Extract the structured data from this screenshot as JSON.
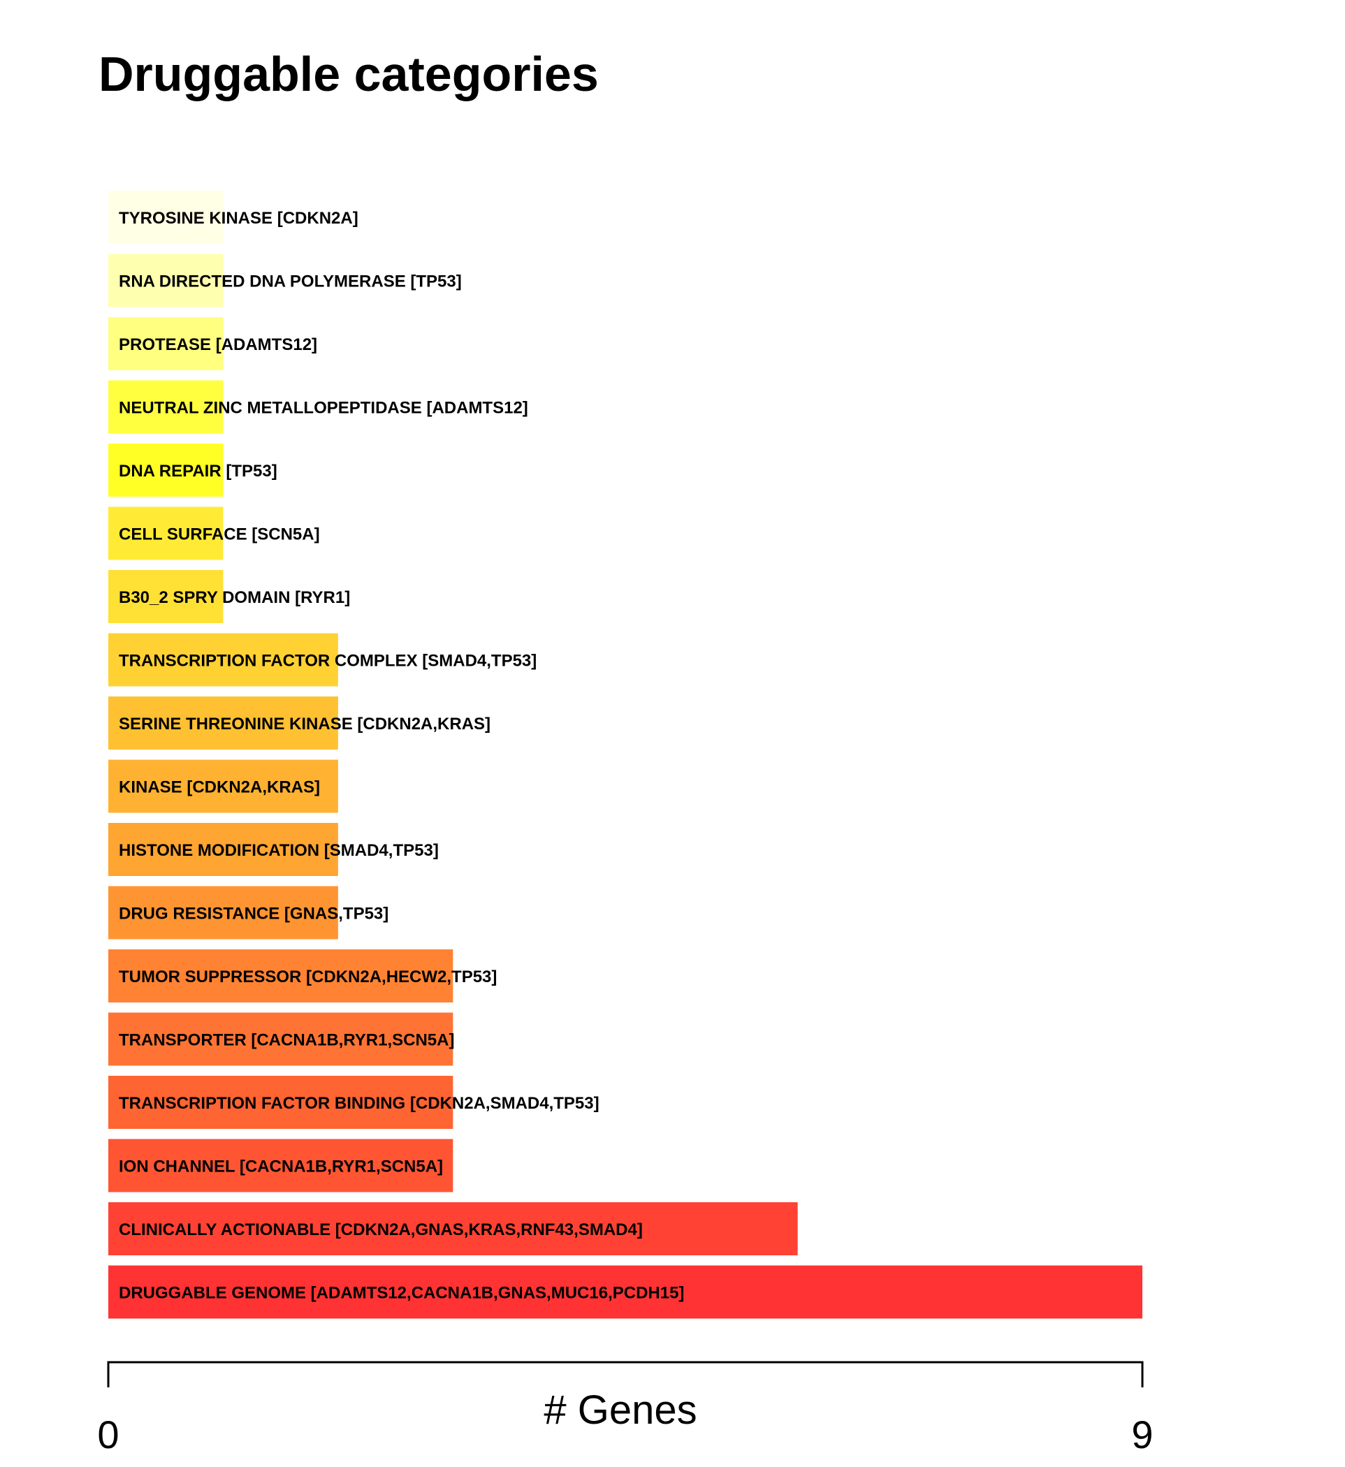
{
  "chart_data": {
    "type": "bar",
    "orientation": "horizontal",
    "title": "Druggable categories",
    "xlabel": "# Genes",
    "ylabel": "",
    "xlim": [
      0,
      9
    ],
    "x_ticks": [
      "0",
      "9"
    ],
    "grid": false,
    "legend": "none",
    "categories": [
      "TYROSINE KINASE [CDKN2A]",
      "RNA DIRECTED DNA POLYMERASE [TP53]",
      "PROTEASE [ADAMTS12]",
      "NEUTRAL ZINC METALLOPEPTIDASE [ADAMTS12]",
      "DNA REPAIR [TP53]",
      "CELL SURFACE [SCN5A]",
      "B30_2 SPRY DOMAIN [RYR1]",
      "TRANSCRIPTION FACTOR COMPLEX [SMAD4,TP53]",
      "SERINE THREONINE KINASE [CDKN2A,KRAS]",
      "KINASE [CDKN2A,KRAS]",
      "HISTONE MODIFICATION [SMAD4,TP53]",
      "DRUG RESISTANCE [GNAS,TP53]",
      "TUMOR SUPPRESSOR [CDKN2A,HECW2,TP53]",
      "TRANSPORTER [CACNA1B,RYR1,SCN5A]",
      "TRANSCRIPTION FACTOR BINDING [CDKN2A,SMAD4,TP53]",
      "ION CHANNEL [CACNA1B,RYR1,SCN5A]",
      "CLINICALLY ACTIONABLE [CDKN2A,GNAS,KRAS,RNF43,SMAD4]",
      "DRUGGABLE GENOME [ADAMTS12,CACNA1B,GNAS,MUC16,PCDH15]"
    ],
    "values": [
      1,
      1,
      1,
      1,
      1,
      1,
      1,
      2,
      2,
      2,
      2,
      2,
      3,
      3,
      3,
      3,
      6,
      9
    ],
    "colors": [
      "#FFFFE5",
      "#FFFFB0",
      "#FFFF80",
      "#FFFF40",
      "#FFFF26",
      "#FFEB35",
      "#FFE034",
      "#FFD133",
      "#FFC032",
      "#FFB232",
      "#FFA532",
      "#FF9532",
      "#FF8333",
      "#FF7434",
      "#FF6433",
      "#FF5533",
      "#FF4233",
      "#FF3333"
    ]
  }
}
